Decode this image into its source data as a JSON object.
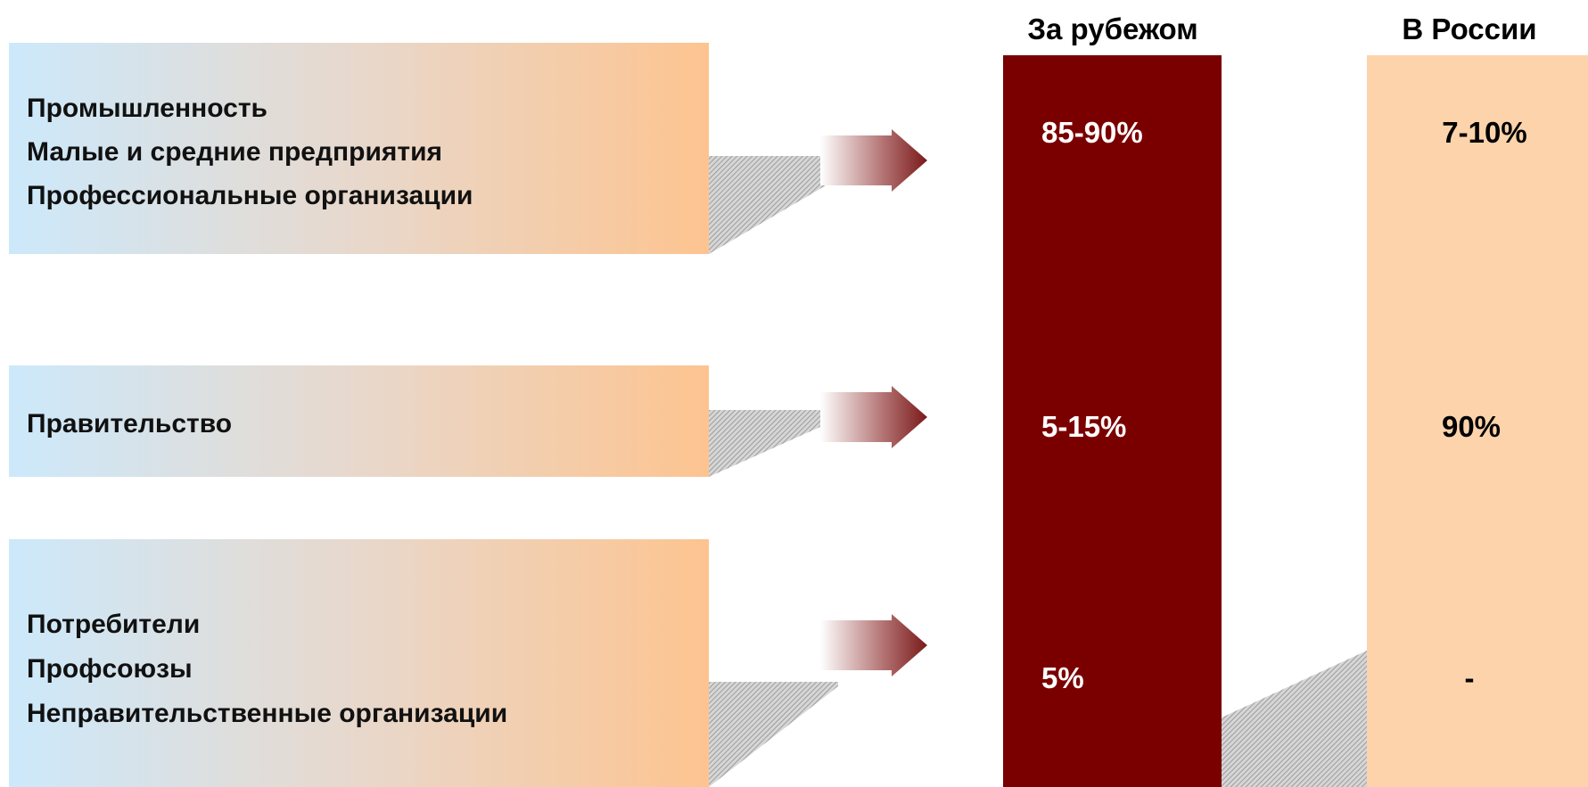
{
  "headers": [
    "За рубежом",
    "В России"
  ],
  "rows": [
    {
      "labels": [
        "Промышленность",
        "Малые и средние предприятия",
        "Профессиональные организации"
      ],
      "abroad": "85-90%",
      "russia": "7-10%"
    },
    {
      "labels": [
        "Правительство"
      ],
      "abroad": "5-15%",
      "russia": "90%"
    },
    {
      "labels": [
        "Потребители",
        "Профсоюзы",
        "Неправительственные организации"
      ],
      "abroad": "5%",
      "russia": "-"
    }
  ]
}
